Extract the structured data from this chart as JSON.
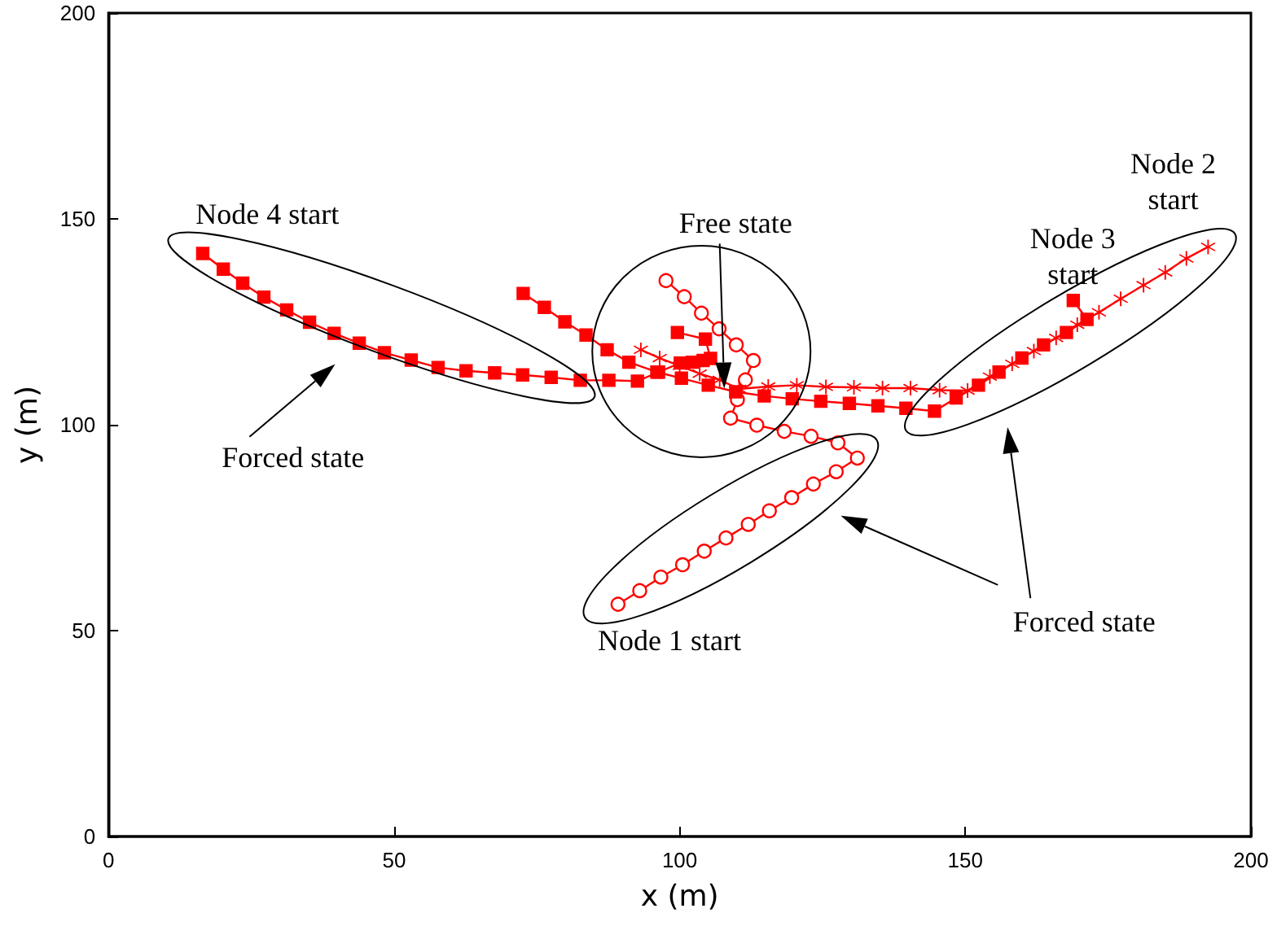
{
  "chart_data": {
    "type": "line",
    "xlabel": "x (m)",
    "ylabel": "y (m)",
    "xlim": [
      0,
      200
    ],
    "xticks": [
      0,
      50,
      100,
      150,
      200
    ],
    "ylim": [
      0,
      200
    ],
    "yticks": [
      0,
      50,
      100,
      150,
      200
    ],
    "grid": false,
    "series": [
      {
        "color": "#ff0000",
        "marker": "circle",
        "x": [
          89.2,
          93.0,
          96.7,
          100.5,
          104.3,
          108.1,
          112.0,
          115.7,
          119.6,
          123.4,
          127.4,
          131.1,
          127.7,
          123.0,
          118.3,
          113.5,
          108.9,
          110.1,
          111.5,
          112.9,
          109.9,
          106.9,
          103.8,
          100.8,
          97.6
        ],
        "values": [
          56.4,
          59.7,
          63.0,
          66.0,
          69.3,
          72.5,
          75.8,
          79.1,
          82.3,
          85.6,
          88.6,
          91.9,
          95.6,
          97.2,
          98.4,
          99.9,
          101.6,
          106.1,
          110.9,
          115.6,
          119.4,
          123.3,
          127.1,
          131.1,
          135.0
        ]
      },
      {
        "color": "#ff0000",
        "marker": "star",
        "x": [
          192.5,
          188.7,
          185.0,
          181.2,
          177.2,
          173.4,
          169.6,
          165.9,
          162.0,
          158.2,
          154.3,
          150.4,
          145.5,
          140.4,
          135.5,
          130.5,
          125.6,
          120.5,
          115.5,
          110.4,
          107.0,
          103.5,
          100.0,
          96.5,
          93.2
        ],
        "values": [
          143.2,
          140.4,
          137.0,
          133.9,
          130.6,
          127.3,
          124.3,
          121.1,
          117.9,
          114.8,
          111.7,
          108.3,
          108.4,
          108.9,
          108.9,
          109.1,
          109.2,
          109.6,
          109.3,
          108.7,
          110.9,
          112.4,
          114.3,
          116.2,
          118.2
        ]
      },
      {
        "color": "#ff0000",
        "marker": "square",
        "x": [
          168.9,
          171.3,
          167.7,
          163.7,
          159.9,
          155.9,
          152.3,
          148.4,
          144.6,
          139.6,
          134.7,
          129.7,
          124.7,
          119.7,
          114.8,
          109.8,
          105.0,
          100.3,
          96.0,
          91.1,
          87.3,
          83.6,
          79.9,
          76.3,
          72.6
        ],
        "values": [
          130.2,
          125.6,
          122.4,
          119.4,
          116.2,
          112.8,
          109.6,
          106.5,
          103.3,
          104.0,
          104.6,
          105.2,
          105.7,
          106.3,
          107.0,
          108.0,
          109.6,
          111.3,
          112.8,
          115.2,
          118.2,
          121.8,
          125.0,
          128.5,
          131.9
        ]
      },
      {
        "color": "#ff0000",
        "marker": "square",
        "x": [
          16.5,
          20.1,
          23.5,
          27.2,
          31.2,
          35.2,
          39.5,
          43.9,
          48.3,
          53.0,
          57.7,
          62.6,
          67.6,
          72.5,
          77.5,
          82.6,
          87.6,
          92.6,
          96.3,
          100.1,
          102.2,
          104.1,
          105.4,
          104.5,
          99.6
        ],
        "values": [
          141.6,
          137.8,
          134.4,
          131.0,
          127.9,
          124.9,
          122.2,
          119.8,
          117.5,
          115.7,
          113.9,
          113.1,
          112.6,
          112.1,
          111.5,
          110.8,
          110.8,
          110.6,
          112.8,
          115.0,
          115.2,
          115.6,
          116.1,
          120.8,
          122.4
        ]
      }
    ],
    "annotations": [
      "Node 4 start",
      "Node 2\nstart",
      "Node 3\nstart",
      "Free state",
      "Forced state",
      "Node 1 start",
      "Forced state"
    ]
  }
}
